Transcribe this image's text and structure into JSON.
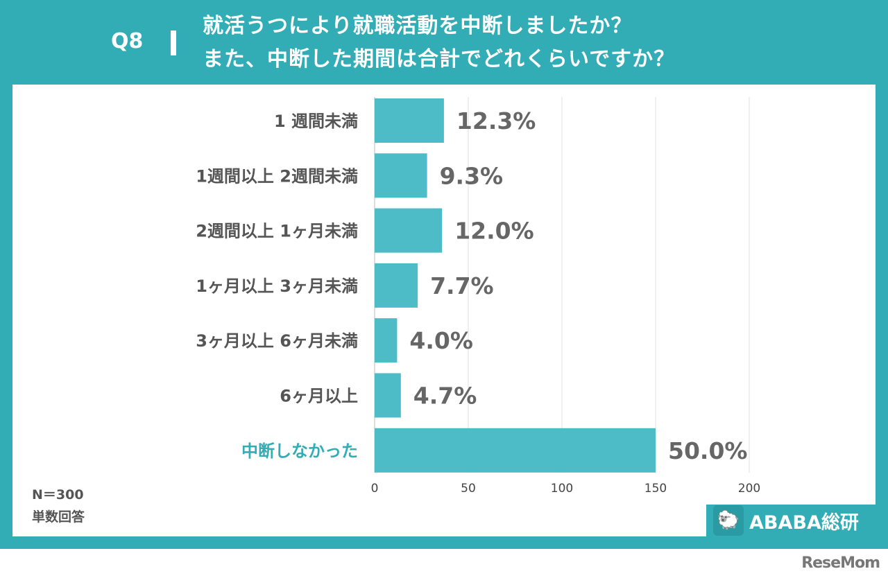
{
  "header": {
    "q": "Q8",
    "title_line1": "就活うつにより就職活動を中断しましたか？",
    "title_line2": "また、中断した期間は合計でどれくらいですか？"
  },
  "footer": {
    "n": "N＝300",
    "type": "単数回答",
    "logo": "ABABA総研",
    "watermark": "ReseMom"
  },
  "colors": {
    "frame": "#33adb5",
    "bar": "#4dbcc6",
    "highlight_label": "#33adb5"
  },
  "chart_data": {
    "type": "bar",
    "orientation": "horizontal",
    "categories": [
      "1 週間未満",
      "1週間以上 2週間未満",
      "2週間以上 1ヶ月未満",
      "1ヶ月以上 3ヶ月未満",
      "3ヶ月以上 6ヶ月未満",
      "6ヶ月以上",
      "中断しなかった"
    ],
    "values": [
      37,
      28,
      36,
      23,
      12,
      14,
      150
    ],
    "labels": [
      "12.3%",
      "9.3%",
      "12.0%",
      "7.7%",
      "4.0%",
      "4.7%",
      "50.0%"
    ],
    "xlim": [
      0,
      200
    ],
    "xticks": [
      "0",
      "50",
      "100",
      "150",
      "200"
    ],
    "grid": true,
    "highlight_index": 6
  }
}
